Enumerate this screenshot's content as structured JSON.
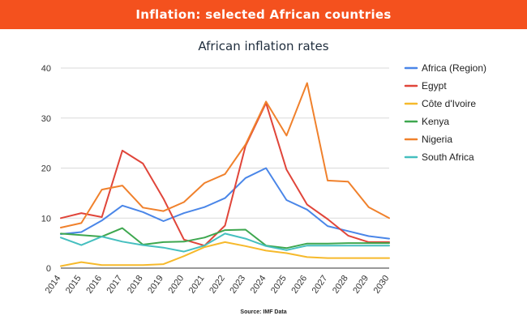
{
  "header": {
    "title": "Inflation: selected African countries"
  },
  "chart_data": {
    "type": "line",
    "title": "African inflation rates",
    "xlabel": "",
    "ylabel": "",
    "x": [
      "2014",
      "2015",
      "2016",
      "2017",
      "2018",
      "2019",
      "2020",
      "2021",
      "2022",
      "2023",
      "2024",
      "2025",
      "2026",
      "2027",
      "2028",
      "2029",
      "2030"
    ],
    "ylim": [
      0,
      40
    ],
    "yticks": [
      0,
      10,
      20,
      30,
      40
    ],
    "grid": true,
    "legend_position": "right",
    "series": [
      {
        "name": "Africa (Region)",
        "color": "#4a86e8",
        "values": [
          6.8,
          7.2,
          9.5,
          12.5,
          11.2,
          9.4,
          11.0,
          12.2,
          14.0,
          18.0,
          20.0,
          13.6,
          11.7,
          8.4,
          7.4,
          6.4,
          5.9
        ]
      },
      {
        "name": "Egypt",
        "color": "#e0453a",
        "values": [
          10.0,
          11.0,
          10.2,
          23.5,
          20.9,
          13.9,
          5.7,
          4.5,
          8.5,
          24.4,
          33.0,
          19.7,
          12.7,
          9.8,
          6.5,
          5.2,
          5.2
        ]
      },
      {
        "name": "Côte d'Ivoire",
        "color": "#f6b92b",
        "values": [
          0.4,
          1.2,
          0.6,
          0.6,
          0.6,
          0.8,
          2.4,
          4.2,
          5.2,
          4.4,
          3.5,
          3.0,
          2.2,
          2.0,
          2.0,
          2.0,
          2.0
        ]
      },
      {
        "name": "Kenya",
        "color": "#3ea74f",
        "values": [
          6.9,
          6.6,
          6.3,
          8.0,
          4.7,
          5.2,
          5.3,
          6.1,
          7.6,
          7.7,
          4.5,
          4.0,
          4.9,
          4.9,
          5.0,
          5.0,
          5.0
        ]
      },
      {
        "name": "Nigeria",
        "color": "#f0812c",
        "values": [
          8.1,
          9.0,
          15.7,
          16.5,
          12.1,
          11.4,
          13.2,
          17.0,
          18.8,
          24.7,
          33.3,
          26.5,
          37.0,
          17.5,
          17.3,
          12.2,
          10.0
        ]
      },
      {
        "name": "South Africa",
        "color": "#45bfbf",
        "values": [
          6.1,
          4.6,
          6.3,
          5.3,
          4.6,
          4.1,
          3.3,
          4.5,
          6.9,
          5.9,
          4.4,
          3.6,
          4.5,
          4.5,
          4.5,
          4.5,
          4.5
        ]
      }
    ],
    "source": "Source: IMF Data"
  }
}
